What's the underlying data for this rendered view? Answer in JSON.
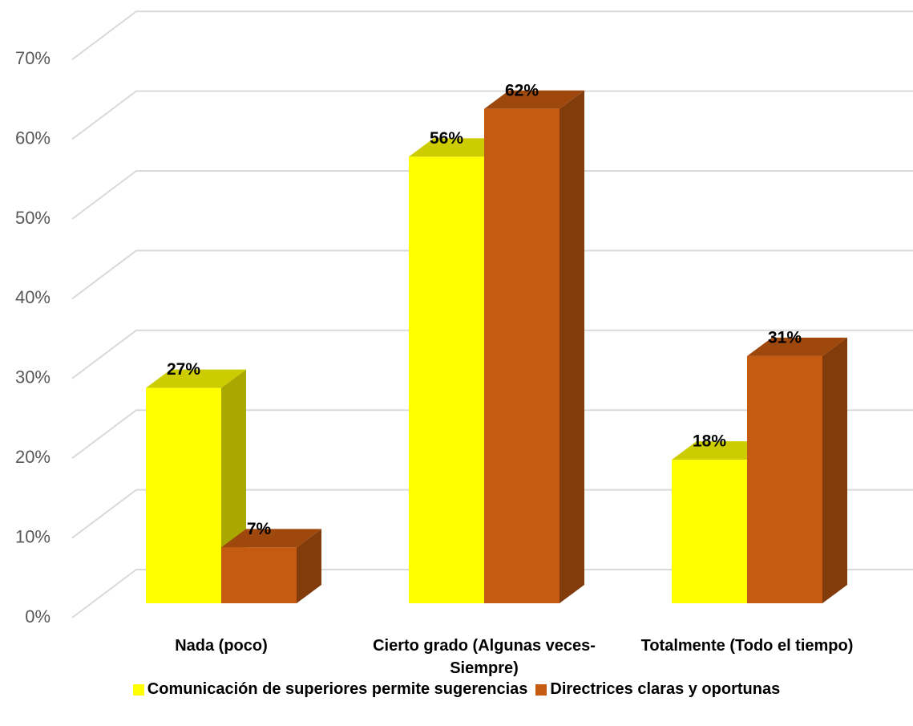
{
  "chart_data": {
    "type": "bar3d",
    "categories": [
      "Nada (poco)",
      "Cierto grado (Algunas veces-Siempre)",
      "Totalmente (Todo el tiempo)"
    ],
    "series": [
      {
        "name": "Comunicación de superiores permite sugerencias",
        "color": "#ffff00",
        "values": [
          27,
          56,
          18
        ],
        "value_labels": [
          "27%",
          "56%",
          "18%"
        ]
      },
      {
        "name": "Directrices claras y oportunas",
        "color": "#c55a11",
        "values": [
          7,
          62,
          31
        ],
        "value_labels": [
          "7%",
          "62%",
          "31%"
        ]
      }
    ],
    "ylim": [
      0,
      70
    ],
    "yticks": [
      {
        "value": 0,
        "label": "0%"
      },
      {
        "value": 10,
        "label": "10%"
      },
      {
        "value": 20,
        "label": "20%"
      },
      {
        "value": 30,
        "label": "30%"
      },
      {
        "value": 40,
        "label": "40%"
      },
      {
        "value": 50,
        "label": "50%"
      },
      {
        "value": 60,
        "label": "60%"
      },
      {
        "value": 70,
        "label": "70%"
      }
    ],
    "grid": true,
    "legend": "bottom"
  }
}
